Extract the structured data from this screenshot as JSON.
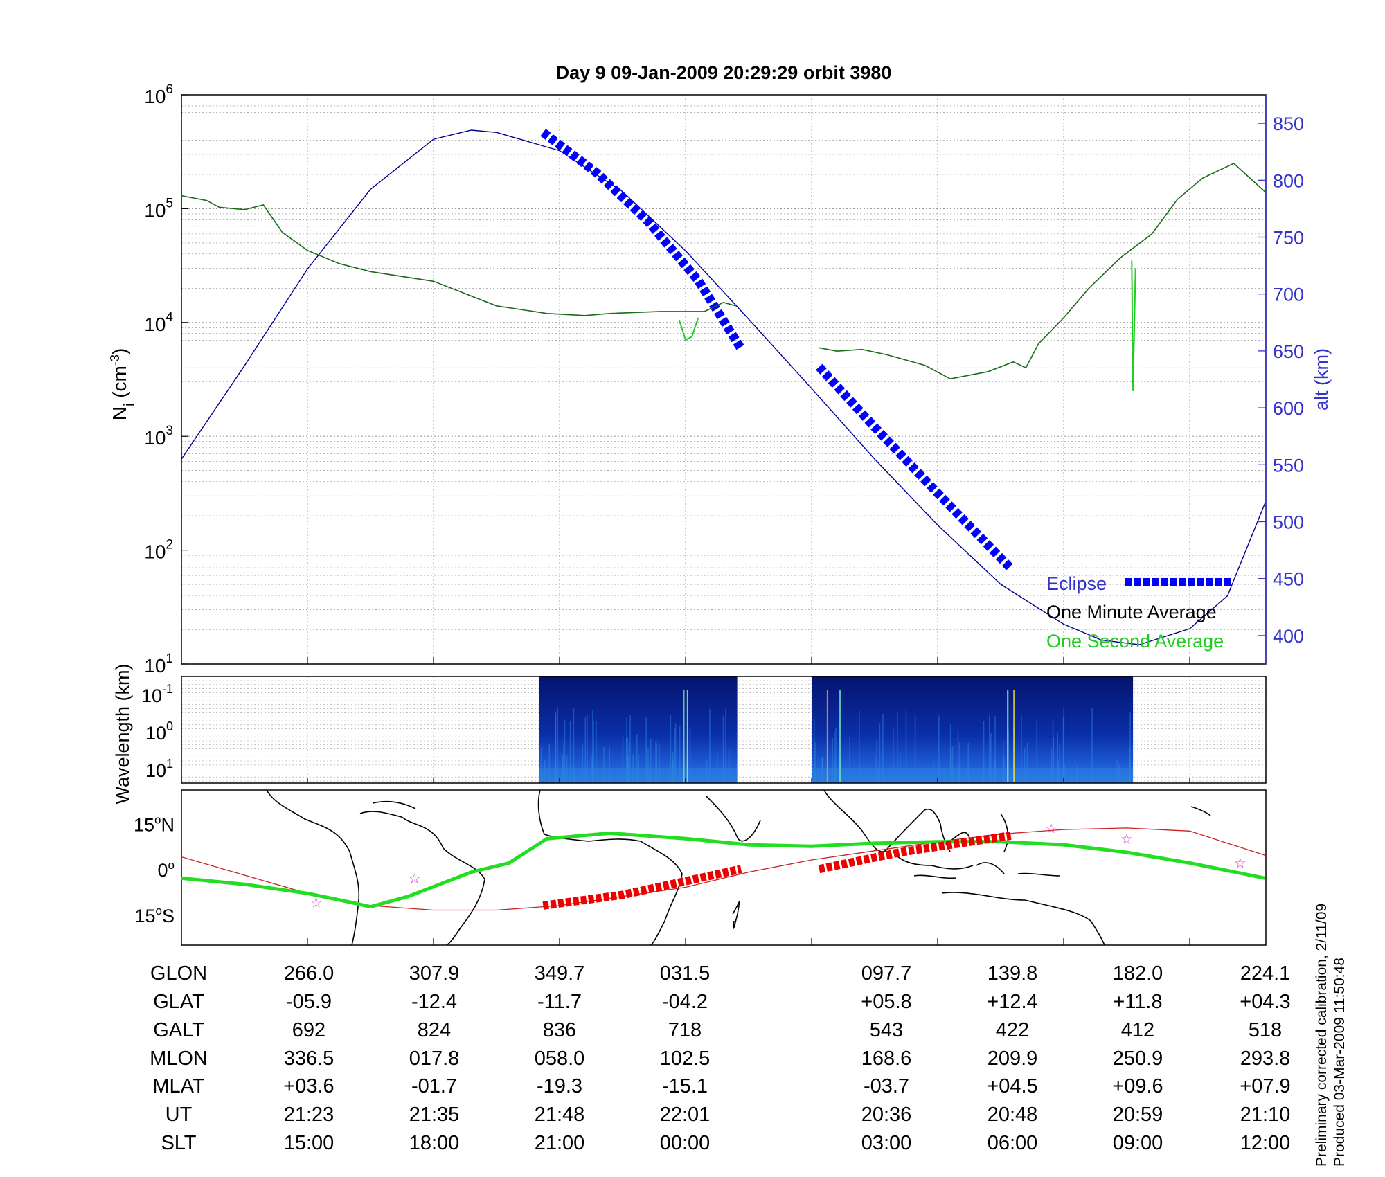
{
  "chart_data": {
    "type": "line",
    "title": "Day 9  09-Jan-2009 20:29:29   orbit 3980",
    "panels": {
      "density": {
        "ylabel_left": "N_i (cm^-3)",
        "yscale_left": "log",
        "ylim_left": [
          10,
          1000000
        ],
        "left_ticks": [
          {
            "base": "10",
            "exp": "1"
          },
          {
            "base": "10",
            "exp": "2"
          },
          {
            "base": "10",
            "exp": "3"
          },
          {
            "base": "10",
            "exp": "4"
          },
          {
            "base": "10",
            "exp": "5"
          },
          {
            "base": "10",
            "exp": "6"
          }
        ],
        "ylabel_right": "alt (km)",
        "ylim_right": [
          375,
          875
        ],
        "right_ticks": [
          "400",
          "450",
          "500",
          "550",
          "600",
          "650",
          "700",
          "750",
          "800",
          "850"
        ],
        "grid": true,
        "legend": {
          "placement": "bottom-right",
          "entries": [
            "Eclipse",
            "One Minute Average",
            "One Second Average"
          ]
        },
        "x_index_range": [
          0,
          8.6
        ],
        "altitude_series_km": [
          [
            0,
            555
          ],
          [
            0.5,
            637
          ],
          [
            1,
            722
          ],
          [
            1.5,
            792
          ],
          [
            2,
            836
          ],
          [
            2.3,
            844
          ],
          [
            2.5,
            842
          ],
          [
            3,
            826
          ],
          [
            3.5,
            790
          ],
          [
            4,
            738
          ],
          [
            4.5,
            678
          ],
          [
            5,
            617
          ],
          [
            5.5,
            555
          ],
          [
            6,
            497
          ],
          [
            6.5,
            445
          ],
          [
            7,
            410
          ],
          [
            7.3,
            396
          ],
          [
            7.6,
            392
          ],
          [
            8,
            406
          ],
          [
            8.3,
            435
          ],
          [
            8.6,
            517
          ]
        ],
        "eclipse_km": [
          [
            [
              2.87,
              842
            ],
            [
              3.3,
              806
            ],
            [
              3.7,
              764
            ],
            [
              4.1,
              712
            ],
            [
              4.44,
              652
            ]
          ],
          [
            [
              5.06,
              636
            ],
            [
              5.5,
              583
            ],
            [
              6,
              525
            ],
            [
              6.5,
              468
            ],
            [
              6.58,
              459
            ]
          ]
        ],
        "one_minute_average_cm3": [
          [
            0,
            130000
          ],
          [
            0.2,
            118000
          ],
          [
            0.3,
            103000
          ],
          [
            0.5,
            98000
          ],
          [
            0.65,
            108000
          ],
          [
            0.8,
            62000
          ],
          [
            1,
            43000
          ],
          [
            1.25,
            33000
          ],
          [
            1.5,
            28000
          ],
          [
            2,
            23000
          ],
          [
            2.5,
            14000
          ],
          [
            2.9,
            12000
          ],
          [
            3.2,
            11500
          ],
          [
            3.4,
            12000
          ],
          [
            3.8,
            12500
          ],
          [
            4.15,
            12500
          ],
          [
            4.3,
            15000
          ],
          [
            4.4,
            14000
          ],
          [
            null,
            null
          ],
          [
            5.06,
            6000
          ],
          [
            5.2,
            5600
          ],
          [
            5.4,
            5800
          ],
          [
            5.6,
            5200
          ],
          [
            5.9,
            4200
          ],
          [
            6.1,
            3200
          ],
          [
            6.4,
            3700
          ],
          [
            6.6,
            4500
          ],
          [
            6.7,
            4000
          ],
          [
            6.8,
            6500
          ],
          [
            7,
            11000
          ],
          [
            7.2,
            20000
          ],
          [
            7.45,
            37000
          ],
          [
            7.7,
            60000
          ],
          [
            7.9,
            120000
          ],
          [
            8.1,
            185000
          ],
          [
            8.35,
            250000
          ],
          [
            8.6,
            140000
          ]
        ],
        "one_second_average_cm3": [
          [
            3.95,
            10500
          ],
          [
            4.0,
            7000
          ],
          [
            4.05,
            7500
          ],
          [
            4.1,
            11000
          ],
          [
            null,
            null
          ],
          [
            7.54,
            35000
          ],
          [
            7.55,
            2500
          ],
          [
            7.57,
            30000
          ]
        ]
      },
      "spectrogram": {
        "ylabel": "Wavelength (km)",
        "ticks": [
          {
            "base": "10",
            "exp": "-1"
          },
          {
            "base": "10",
            "exp": "0"
          },
          {
            "base": "10",
            "exp": "1"
          }
        ],
        "data_intervals_index": [
          [
            2.84,
            4.41
          ],
          [
            5.0,
            7.55
          ]
        ]
      },
      "map": {
        "lat_ticks": [
          {
            "value": "15",
            "hemi": "N"
          },
          {
            "value": "0",
            "hemi": ""
          },
          {
            "value": "15",
            "hemi": "S"
          }
        ],
        "ylim_deg": [
          -25,
          26
        ]
      }
    },
    "table": {
      "row_labels": [
        "GLON",
        "GLAT",
        "GALT",
        "MLON",
        "MLAT",
        "UT",
        "SLT"
      ],
      "columns": [
        [
          "266.0",
          "-05.9",
          "692",
          "336.5",
          "+03.6",
          "21:23",
          "15:00"
        ],
        [
          "307.9",
          "-12.4",
          "824",
          "017.8",
          "-01.7",
          "21:35",
          "18:00"
        ],
        [
          "349.7",
          "-11.7",
          "836",
          "058.0",
          "-19.3",
          "21:48",
          "21:00"
        ],
        [
          "031.5",
          "-04.2",
          "718",
          "102.5",
          "-15.1",
          "22:01",
          "00:00"
        ],
        [
          "097.7",
          "+05.8",
          "543",
          "168.6",
          "-03.7",
          "20:36",
          "03:00"
        ],
        [
          "139.8",
          "+12.4",
          "422",
          "209.9",
          "+04.5",
          "20:48",
          "06:00"
        ],
        [
          "182.0",
          "+11.8",
          "412",
          "250.9",
          "+09.6",
          "20:59",
          "09:00"
        ],
        [
          "224.1",
          "+04.3",
          "518",
          "293.8",
          "+07.9",
          "21:10",
          "12:00"
        ]
      ]
    },
    "footnotes": [
      "Preliminary corrected calibration, 2/11/09",
      "Produced 03-Mar-2009 11:50:48"
    ],
    "colors": {
      "altitude": "#00008b",
      "eclipse": "#0000ff",
      "minute_avg": "#1a6b1a",
      "second_avg": "#22cc22",
      "ground_track": "#22dd22",
      "dip_equator": "#cc2222",
      "eclipse_track": "#ee0000",
      "axis_blue": "#3333cc",
      "legend_green": "#22cc22"
    }
  }
}
